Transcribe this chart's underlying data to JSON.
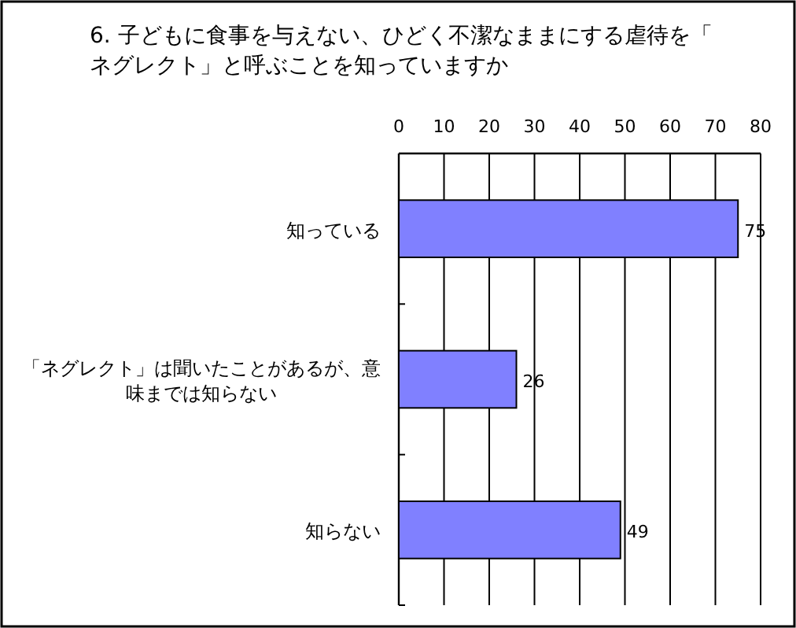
{
  "chart_data": {
    "type": "bar",
    "orientation": "horizontal",
    "title": "6. 子どもに食事を与えない、ひどく不潔なままにする虐待を「ネグレクト」と呼ぶことを知っていますか",
    "categories": [
      "知っている",
      "「ネグレクト」は聞いたことがあるが、意味までは知らない",
      "知らない"
    ],
    "values": [
      75,
      26,
      49
    ],
    "color": "#8080ff",
    "xlim": [
      0,
      80
    ],
    "xticks": [
      0,
      10,
      20,
      30,
      40,
      50,
      60,
      70,
      80
    ],
    "grid": "x",
    "data_labels": true
  }
}
